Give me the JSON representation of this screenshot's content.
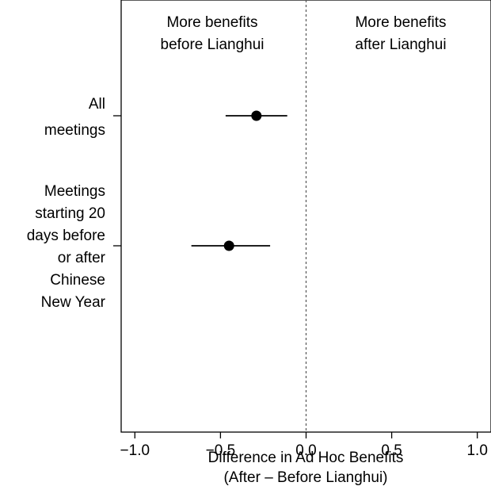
{
  "chart_data": {
    "type": "scatter",
    "title": "",
    "xlabel_lines": [
      "Difference in Ad Hoc Benefits",
      "(After – Before Lianghui)"
    ],
    "ylabel": "",
    "xlim": [
      -1.08,
      1.08
    ],
    "xticks": [
      -1.0,
      -0.5,
      0.0,
      0.5,
      1.0
    ],
    "xtick_labels": [
      "−1.0",
      "−0.5",
      "0.0",
      "0.5",
      "1.0"
    ],
    "reference_line": 0.0,
    "grid": false,
    "region_labels": {
      "left": [
        "More benefits",
        "before Lianghui"
      ],
      "right": [
        "More benefits",
        "after Lianghui"
      ]
    },
    "rows": [
      {
        "label_lines": [
          "All",
          "meetings"
        ],
        "estimate": -0.29,
        "ci": [
          -0.47,
          -0.11
        ]
      },
      {
        "label_lines": [
          "Meetings",
          "starting 20",
          "days before",
          "or after",
          "Chinese",
          "New Year"
        ],
        "estimate": -0.45,
        "ci": [
          -0.67,
          -0.21
        ]
      }
    ],
    "colors": {
      "point": "#000000",
      "line": "#000000",
      "reference": "#555555"
    }
  }
}
